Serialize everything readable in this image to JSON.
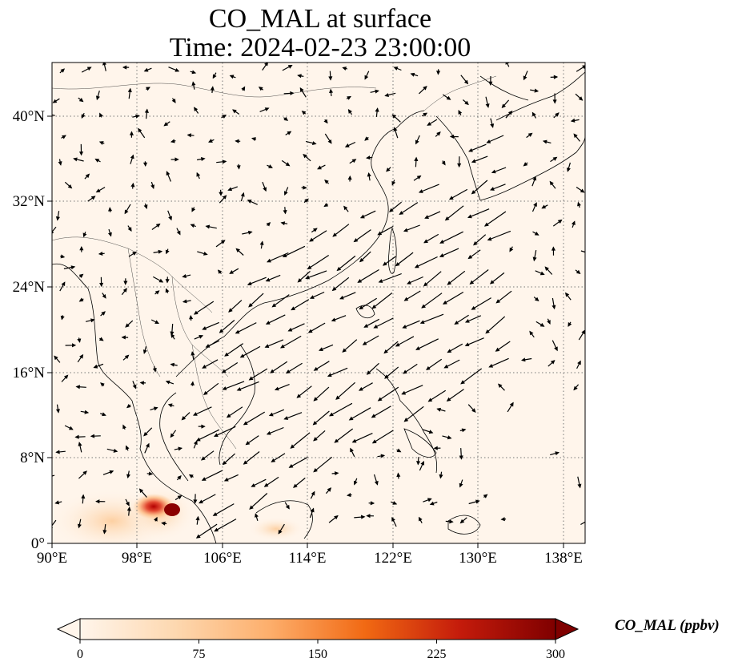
{
  "title": {
    "line1": "CO_MAL at surface",
    "line2": "Time: 2024-02-23 23:00:00"
  },
  "map": {
    "lon_range": [
      90,
      140
    ],
    "lat_range": [
      0,
      45
    ],
    "xticks": [
      {
        "value": 90,
        "label": "90°E"
      },
      {
        "value": 98,
        "label": "98°E"
      },
      {
        "value": 106,
        "label": "106°E"
      },
      {
        "value": 114,
        "label": "114°E"
      },
      {
        "value": 122,
        "label": "122°E"
      },
      {
        "value": 130,
        "label": "130°E"
      },
      {
        "value": 138,
        "label": "138°E"
      }
    ],
    "yticks": [
      {
        "value": 0,
        "label": "0°"
      },
      {
        "value": 8,
        "label": "8°N"
      },
      {
        "value": 16,
        "label": "16°N"
      },
      {
        "value": 24,
        "label": "24°N"
      },
      {
        "value": 32,
        "label": "32°N"
      },
      {
        "value": 40,
        "label": "40°N"
      }
    ],
    "gridlines": "dotted",
    "background_color": "#fff5eb",
    "overlay": "wind vectors (black arrows)"
  },
  "colorbar": {
    "label": "CO_MAL (ppbv)",
    "min": 0,
    "max": 300,
    "extend": "both",
    "ticks": [
      {
        "value": 0,
        "label": "0"
      },
      {
        "value": 75,
        "label": "75"
      },
      {
        "value": 150,
        "label": "150"
      },
      {
        "value": 225,
        "label": "225"
      },
      {
        "value": 300,
        "label": "300"
      }
    ],
    "colors": [
      "#fff5eb",
      "#fdd0a2",
      "#fd8d3c",
      "#d94801",
      "#a50f15",
      "#7f0000"
    ]
  }
}
